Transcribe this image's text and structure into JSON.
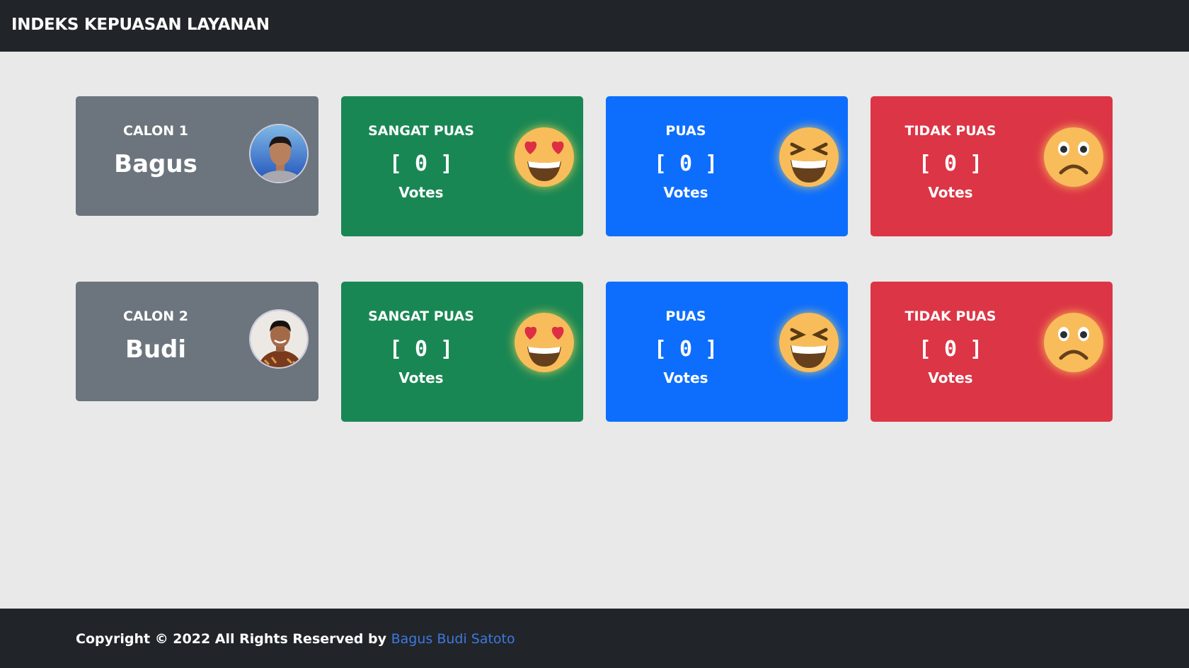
{
  "header": {
    "title": "INDEKS KEPUASAN LAYANAN"
  },
  "candidates": [
    {
      "label": "CALON 1",
      "name": "Bagus",
      "stats": [
        {
          "label": "SANGAT PUAS",
          "count": "[ 0 ]",
          "unit": "Votes",
          "icon": "heart-eyes-emoji",
          "color": "#198754"
        },
        {
          "label": "PUAS",
          "count": "[ 0 ]",
          "unit": "Votes",
          "icon": "laughing-emoji",
          "color": "#0d6efd"
        },
        {
          "label": "TIDAK PUAS",
          "count": "[ 0 ]",
          "unit": "Votes",
          "icon": "frowning-emoji",
          "color": "#dc3545"
        }
      ]
    },
    {
      "label": "CALON 2",
      "name": "Budi",
      "stats": [
        {
          "label": "SANGAT PUAS",
          "count": "[ 0 ]",
          "unit": "Votes",
          "icon": "heart-eyes-emoji",
          "color": "#198754"
        },
        {
          "label": "PUAS",
          "count": "[ 0 ]",
          "unit": "Votes",
          "icon": "laughing-emoji",
          "color": "#0d6efd"
        },
        {
          "label": "TIDAK PUAS",
          "count": "[ 0 ]",
          "unit": "Votes",
          "icon": "frowning-emoji",
          "color": "#dc3545"
        }
      ]
    }
  ],
  "footer": {
    "text": "Copyright © 2022 All Rights Reserved by ",
    "link": "Bagus Budi Satoto"
  }
}
